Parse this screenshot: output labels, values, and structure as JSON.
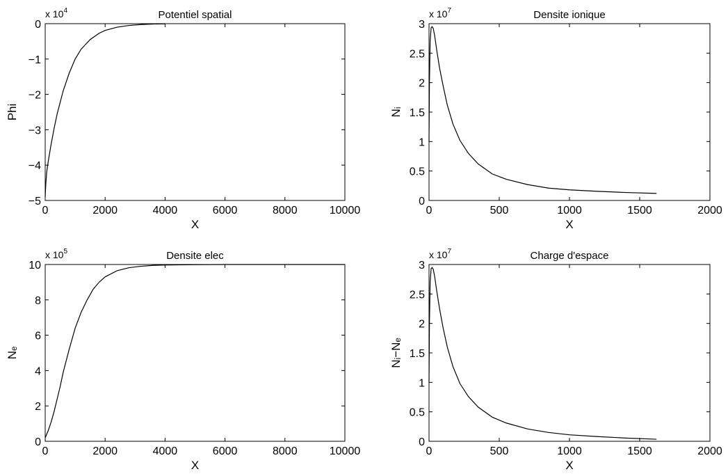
{
  "chart_data": [
    {
      "type": "line",
      "title": "Potentiel spatial",
      "xlabel": "X",
      "ylabel": "Phi",
      "exponent_base": "x 10",
      "exponent_power": "4",
      "xlim": [
        0,
        10000
      ],
      "ylim": [
        -5,
        0
      ],
      "xticks": [
        0,
        2000,
        4000,
        6000,
        8000,
        10000
      ],
      "yticks": [
        -5,
        -4,
        -3,
        -2,
        -1,
        0
      ],
      "xtick_labels": [
        "0",
        "2000",
        "4000",
        "6000",
        "8000",
        "10000"
      ],
      "ytick_labels": [
        "−5",
        "−4",
        "−3",
        "−2",
        "−1",
        "0"
      ],
      "grid": false,
      "series": [
        {
          "color": "#000000",
          "x": [
            0,
            20,
            50,
            100,
            200,
            300,
            400,
            600,
            800,
            1000,
            1200,
            1500,
            1800,
            2000,
            2400,
            2800,
            3200,
            3600,
            4000
          ],
          "y": [
            -4.9,
            -4.55,
            -4.2,
            -3.9,
            -3.4,
            -2.95,
            -2.55,
            -1.9,
            -1.4,
            -1.0,
            -0.72,
            -0.45,
            -0.27,
            -0.19,
            -0.1,
            -0.05,
            -0.025,
            -0.01,
            -0.005
          ]
        }
      ]
    },
    {
      "type": "line",
      "title": "Densite ionique",
      "xlabel": "X",
      "ylabel": "Nᵢ",
      "exponent_base": "x 10",
      "exponent_power": "7",
      "xlim": [
        0,
        2000
      ],
      "ylim": [
        0,
        3
      ],
      "xticks": [
        0,
        500,
        1000,
        1500,
        2000
      ],
      "yticks": [
        0,
        0.5,
        1,
        1.5,
        2,
        2.5,
        3
      ],
      "xtick_labels": [
        "0",
        "500",
        "1000",
        "1500",
        "2000"
      ],
      "ytick_labels": [
        "0",
        "0.5",
        "1",
        "1.5",
        "2",
        "2.5",
        "3"
      ],
      "grid": false,
      "series": [
        {
          "color": "#000000",
          "x": [
            0,
            3,
            8,
            15,
            22,
            30,
            40,
            55,
            75,
            100,
            130,
            170,
            220,
            280,
            350,
            450,
            550,
            700,
            850,
            1000,
            1200,
            1400,
            1620
          ],
          "y": [
            1.0,
            2.0,
            2.7,
            2.93,
            2.95,
            2.92,
            2.8,
            2.55,
            2.25,
            1.95,
            1.62,
            1.3,
            1.02,
            0.8,
            0.62,
            0.45,
            0.36,
            0.27,
            0.21,
            0.18,
            0.155,
            0.135,
            0.12
          ]
        }
      ]
    },
    {
      "type": "line",
      "title": "Densite elec",
      "xlabel": "X",
      "ylabel": "Nₑ",
      "exponent_base": "x 10",
      "exponent_power": "5",
      "xlim": [
        0,
        10000
      ],
      "ylim": [
        0,
        10
      ],
      "xticks": [
        0,
        2000,
        4000,
        6000,
        8000,
        10000
      ],
      "yticks": [
        0,
        2,
        4,
        6,
        8,
        10
      ],
      "xtick_labels": [
        "0",
        "2000",
        "4000",
        "6000",
        "8000",
        "10000"
      ],
      "ytick_labels": [
        "0",
        "2",
        "4",
        "6",
        "8",
        "10"
      ],
      "grid": false,
      "series": [
        {
          "color": "#000000",
          "x": [
            0,
            100,
            200,
            300,
            400,
            500,
            600,
            800,
            1000,
            1200,
            1400,
            1600,
            1800,
            2000,
            2400,
            2800,
            3200,
            3600,
            4000,
            5000,
            6000,
            7000,
            8000,
            9000,
            10000
          ],
          "y": [
            0.2,
            0.6,
            1.1,
            1.7,
            2.4,
            3.1,
            3.9,
            5.2,
            6.4,
            7.3,
            8.0,
            8.6,
            9.0,
            9.3,
            9.65,
            9.82,
            9.9,
            9.95,
            9.97,
            9.99,
            10,
            10,
            10,
            10,
            10
          ]
        }
      ]
    },
    {
      "type": "line",
      "title": "Charge d'espace",
      "xlabel": "X",
      "ylabel": "Nᵢ−Nₑ",
      "exponent_base": "x 10",
      "exponent_power": "7",
      "xlim": [
        0,
        2000
      ],
      "ylim": [
        0,
        3
      ],
      "xticks": [
        0,
        500,
        1000,
        1500,
        2000
      ],
      "yticks": [
        0,
        0.5,
        1,
        1.5,
        2,
        2.5,
        3
      ],
      "xtick_labels": [
        "0",
        "500",
        "1000",
        "1500",
        "2000"
      ],
      "ytick_labels": [
        "0",
        "0.5",
        "1",
        "1.5",
        "2",
        "2.5",
        "3"
      ],
      "grid": false,
      "series": [
        {
          "color": "#000000",
          "x": [
            0,
            3,
            8,
            15,
            22,
            30,
            40,
            55,
            75,
            100,
            130,
            170,
            220,
            280,
            350,
            450,
            550,
            700,
            850,
            1000,
            1200,
            1400,
            1620
          ],
          "y": [
            1.0,
            2.0,
            2.7,
            2.93,
            2.95,
            2.92,
            2.8,
            2.55,
            2.25,
            1.93,
            1.6,
            1.27,
            0.98,
            0.76,
            0.58,
            0.41,
            0.31,
            0.21,
            0.15,
            0.11,
            0.08,
            0.055,
            0.035
          ]
        }
      ]
    }
  ]
}
